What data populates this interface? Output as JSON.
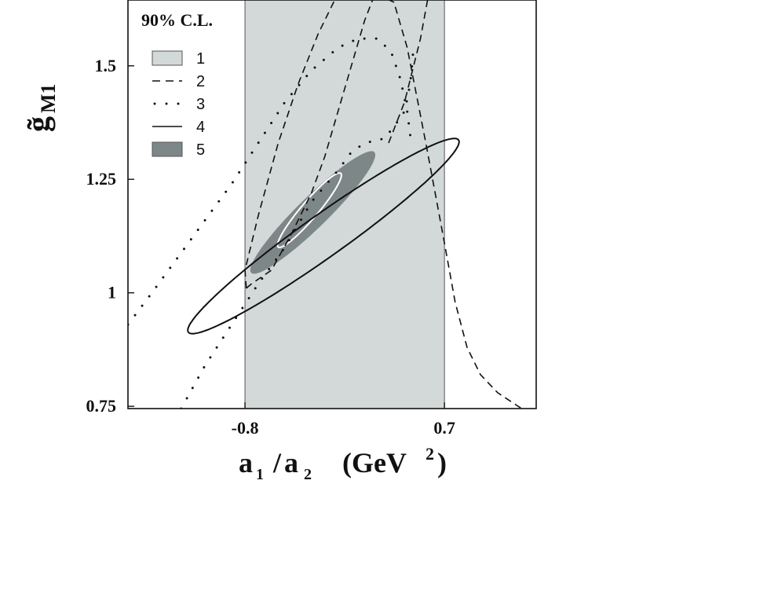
{
  "chart_data": {
    "type": "contour",
    "title": "90% C.L.",
    "xlabel": {
      "main_a": "a",
      "sub_a": "1",
      "slash": "/",
      "main_b": "a",
      "sub_b": "2",
      "unit_open": "(GeV",
      "unit_sup": "2",
      "unit_close": ")"
    },
    "ylabel": {
      "main": "g̃",
      "sub": "M1"
    },
    "x_ticks": [
      {
        "value": -0.8,
        "label": "-0.8"
      },
      {
        "value": 0.7,
        "label": "0.7"
      }
    ],
    "y_ticks": [
      {
        "value": 0.75,
        "label": "0.75"
      },
      {
        "value": 1.0,
        "label": "1"
      },
      {
        "value": 1.25,
        "label": "1.25"
      },
      {
        "value": 1.5,
        "label": "1.5"
      }
    ],
    "xlim": [
      -1.68,
      1.39
    ],
    "ylim": [
      0.745,
      1.645
    ],
    "legend_position": "top-left",
    "legend": [
      {
        "id": "1",
        "label": "1",
        "style": "band",
        "color": "#d3d9d8"
      },
      {
        "id": "2",
        "label": "2",
        "style": "dashed",
        "color": "#111111"
      },
      {
        "id": "3",
        "label": "3",
        "style": "dotted",
        "color": "#111111"
      },
      {
        "id": "4",
        "label": "4",
        "style": "solid",
        "color": "#111111"
      },
      {
        "id": "5",
        "label": "5",
        "style": "filled",
        "color": "#7e8787"
      }
    ],
    "regions": [
      {
        "id": "1",
        "kind": "band",
        "x_range": [
          -0.8,
          0.7
        ],
        "color": "#d3d9d8"
      },
      {
        "id": "2",
        "kind": "contour",
        "line": "dashed",
        "points": [
          [
            -0.79,
            1.01
          ],
          [
            -0.75,
            1.02
          ],
          [
            -0.6,
            1.05
          ],
          [
            -0.45,
            1.13
          ],
          [
            -0.3,
            1.22
          ],
          [
            -0.2,
            1.3
          ],
          [
            -0.05,
            1.45
          ],
          [
            0.1,
            1.6
          ],
          [
            0.18,
            1.66
          ],
          [
            0.32,
            1.64
          ],
          [
            0.42,
            1.54
          ],
          [
            0.5,
            1.42
          ],
          [
            0.56,
            1.33
          ],
          [
            0.63,
            1.22
          ],
          [
            0.7,
            1.11
          ],
          [
            0.78,
            0.98
          ],
          [
            0.87,
            0.88
          ],
          [
            0.97,
            0.82
          ],
          [
            1.1,
            0.78
          ],
          [
            1.28,
            0.745
          ]
        ],
        "points_upper": [
          [
            -0.79,
            1.01
          ],
          [
            -0.8,
            1.05
          ],
          [
            -0.7,
            1.17
          ],
          [
            -0.55,
            1.33
          ],
          [
            -0.4,
            1.46
          ],
          [
            -0.25,
            1.57
          ],
          [
            -0.1,
            1.66
          ],
          [
            0.02,
            1.72
          ]
        ],
        "points_right": [
          [
            0.28,
            1.33
          ],
          [
            0.4,
            1.42
          ],
          [
            0.52,
            1.56
          ],
          [
            0.62,
            1.72
          ]
        ],
        "color": "#111111"
      },
      {
        "id": "3",
        "kind": "contour",
        "line": "dotted",
        "points_top": [
          [
            -1.68,
            0.93
          ],
          [
            -1.5,
            1.0
          ],
          [
            -1.3,
            1.08
          ],
          [
            -1.1,
            1.16
          ],
          [
            -0.9,
            1.24
          ],
          [
            -0.7,
            1.33
          ],
          [
            -0.5,
            1.42
          ],
          [
            -0.3,
            1.49
          ],
          [
            -0.1,
            1.54
          ],
          [
            0.05,
            1.56
          ],
          [
            0.2,
            1.56
          ],
          [
            0.3,
            1.53
          ],
          [
            0.37,
            1.47
          ],
          [
            0.42,
            1.4
          ],
          [
            0.45,
            1.33
          ]
        ],
        "points_bottom": [
          [
            -1.28,
            0.745
          ],
          [
            -1.1,
            0.84
          ],
          [
            -0.9,
            0.93
          ],
          [
            -0.7,
            1.02
          ],
          [
            -0.5,
            1.1
          ],
          [
            -0.3,
            1.2
          ],
          [
            -0.1,
            1.27
          ],
          [
            0.0,
            1.31
          ],
          [
            0.1,
            1.33
          ],
          [
            0.25,
            1.34
          ],
          [
            0.33,
            1.37
          ],
          [
            0.4,
            1.4
          ],
          [
            0.43,
            1.44
          ],
          [
            0.45,
            1.48
          ],
          [
            0.47,
            1.55
          ]
        ],
        "color": "#111111"
      },
      {
        "id": "4",
        "kind": "ellipse",
        "line": "solid",
        "center": [
          -0.21,
          1.125
        ],
        "sx": 1.02,
        "sy": 0.215,
        "rho": 0.965,
        "color": "#111111"
      },
      {
        "id": "5",
        "kind": "ellipse",
        "line": "filled",
        "center": [
          -0.29,
          1.177
        ],
        "sx": 0.47,
        "sy": 0.135,
        "rho": 0.94,
        "color": "#7e8787"
      },
      {
        "id": "inner",
        "kind": "ellipse",
        "line": "white",
        "center": [
          -0.315,
          1.182
        ],
        "sx": 0.24,
        "sy": 0.082,
        "rho": 0.94,
        "color": "#ffffff"
      }
    ]
  }
}
